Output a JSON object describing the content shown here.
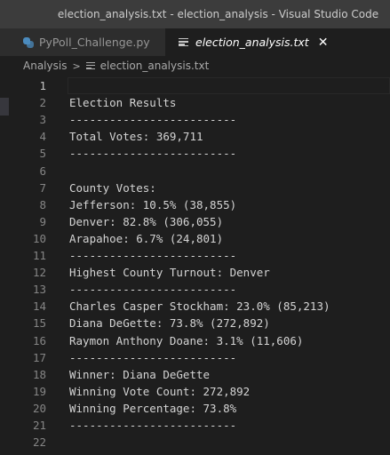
{
  "window": {
    "title": "election_analysis.txt - election_analysis - Visual Studio Code"
  },
  "tabs": [
    {
      "label": "PyPoll_Challenge.py",
      "icon": "python-icon",
      "active": false
    },
    {
      "label": "election_analysis.txt",
      "icon": "text-file-icon",
      "active": true,
      "close": "✕"
    }
  ],
  "breadcrumb": {
    "folder": "Analysis",
    "separator": ">",
    "file": "election_analysis.txt"
  },
  "editor": {
    "active_line": 1,
    "lines": [
      {
        "num": "1",
        "text": ""
      },
      {
        "num": "2",
        "text": "Election Results"
      },
      {
        "num": "3",
        "text": "-------------------------"
      },
      {
        "num": "4",
        "text": "Total Votes: 369,711"
      },
      {
        "num": "5",
        "text": "-------------------------"
      },
      {
        "num": "6",
        "text": ""
      },
      {
        "num": "7",
        "text": "County Votes:"
      },
      {
        "num": "8",
        "text": "Jefferson: 10.5% (38,855)"
      },
      {
        "num": "9",
        "text": "Denver: 82.8% (306,055)"
      },
      {
        "num": "10",
        "text": "Arapahoe: 6.7% (24,801)"
      },
      {
        "num": "11",
        "text": "-------------------------"
      },
      {
        "num": "12",
        "text": "Highest County Turnout: Denver"
      },
      {
        "num": "13",
        "text": "-------------------------"
      },
      {
        "num": "14",
        "text": "Charles Casper Stockham: 23.0% (85,213)"
      },
      {
        "num": "15",
        "text": "Diana DeGette: 73.8% (272,892)"
      },
      {
        "num": "16",
        "text": "Raymon Anthony Doane: 3.1% (11,606)"
      },
      {
        "num": "17",
        "text": "-------------------------"
      },
      {
        "num": "18",
        "text": "Winner: Diana DeGette"
      },
      {
        "num": "19",
        "text": "Winning Vote Count: 272,892"
      },
      {
        "num": "20",
        "text": "Winning Percentage: 73.8%"
      },
      {
        "num": "21",
        "text": "-------------------------"
      },
      {
        "num": "22",
        "text": ""
      }
    ]
  }
}
